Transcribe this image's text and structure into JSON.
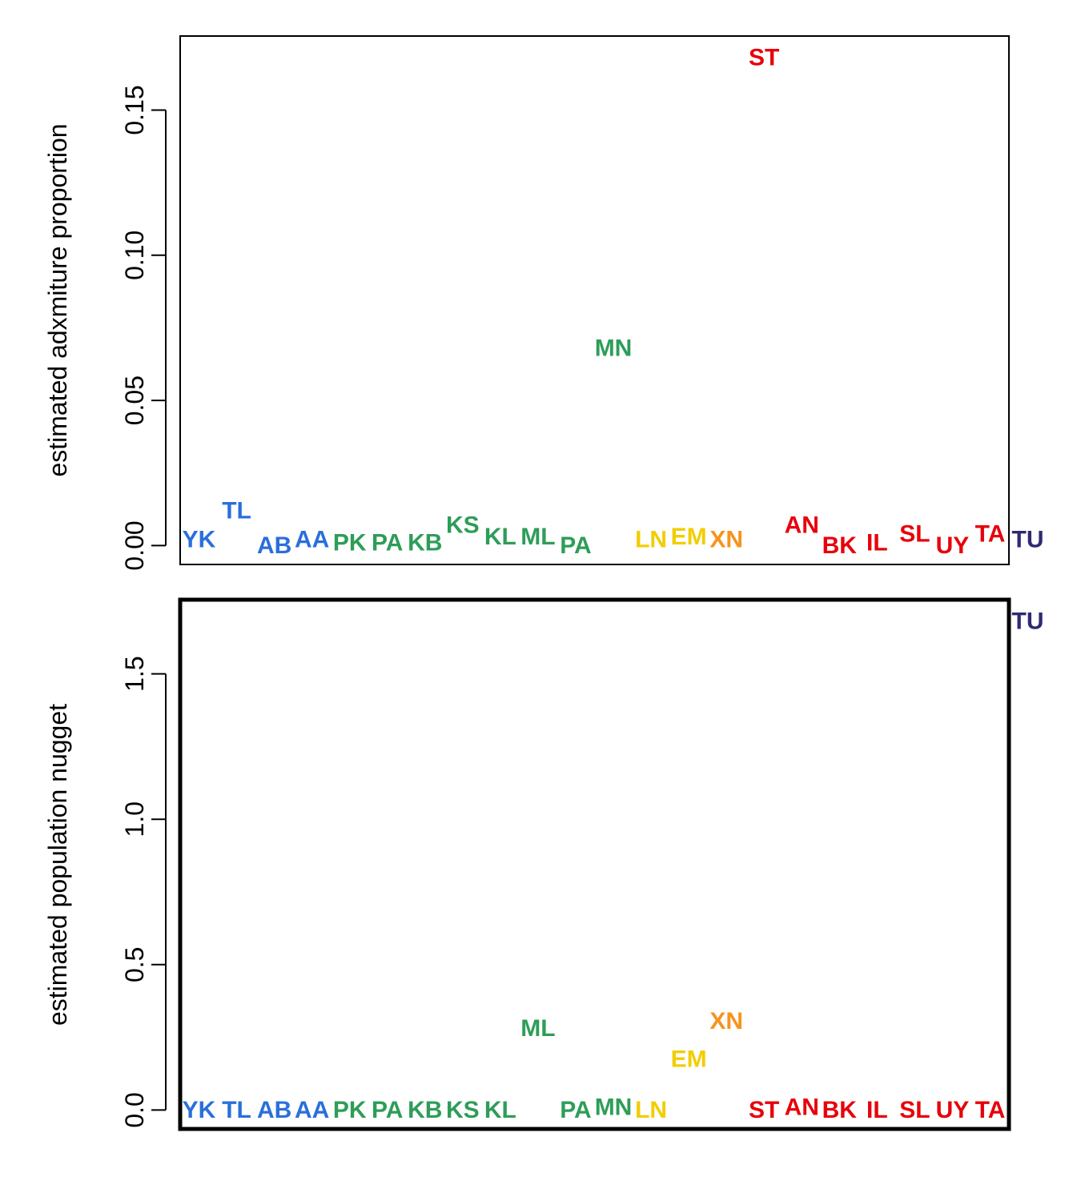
{
  "colors": {
    "blue": "#2a6fdb",
    "green": "#2e9d58",
    "yellow": "#f2cd00",
    "orange": "#f7931e",
    "red": "#e8000b",
    "navy": "#2e2a73"
  },
  "chart_data": [
    {
      "type": "scatter",
      "marker": "text-labels",
      "title": "",
      "xlabel": "",
      "ylabel": "estimated adxmiture proportion",
      "ylim": [
        -0.0065,
        0.1755
      ],
      "yticks": [
        0,
        0.05,
        0.1,
        0.15
      ],
      "ytick_labels": [
        "0.00",
        "0.05",
        "0.10",
        "0.15"
      ],
      "xlim": [
        0.5,
        22.5
      ],
      "grid": false,
      "points": [
        {
          "x": 1,
          "y": 0.002,
          "label": "YK",
          "color": "blue"
        },
        {
          "x": 2,
          "y": 0.012,
          "label": "TL",
          "color": "blue"
        },
        {
          "x": 3,
          "y": 0.0,
          "label": "AB",
          "color": "blue"
        },
        {
          "x": 4,
          "y": 0.002,
          "label": "AA",
          "color": "blue"
        },
        {
          "x": 5,
          "y": 0.001,
          "label": "PK",
          "color": "green"
        },
        {
          "x": 6,
          "y": 0.001,
          "label": "PA",
          "color": "green"
        },
        {
          "x": 7,
          "y": 0.001,
          "label": "KB",
          "color": "green"
        },
        {
          "x": 8,
          "y": 0.007,
          "label": "KS",
          "color": "green"
        },
        {
          "x": 9,
          "y": 0.003,
          "label": "KL",
          "color": "green"
        },
        {
          "x": 10,
          "y": 0.003,
          "label": "ML",
          "color": "green"
        },
        {
          "x": 11,
          "y": 0.0,
          "label": "PA",
          "color": "green"
        },
        {
          "x": 12,
          "y": 0.068,
          "label": "MN",
          "color": "green"
        },
        {
          "x": 13,
          "y": 0.002,
          "label": "LN",
          "color": "yellow"
        },
        {
          "x": 14,
          "y": 0.003,
          "label": "EM",
          "color": "yellow"
        },
        {
          "x": 15,
          "y": 0.002,
          "label": "XN",
          "color": "orange"
        },
        {
          "x": 16,
          "y": 0.168,
          "label": "ST",
          "color": "red"
        },
        {
          "x": 17,
          "y": 0.007,
          "label": "AN",
          "color": "red"
        },
        {
          "x": 18,
          "y": 0.0,
          "label": "BK",
          "color": "red"
        },
        {
          "x": 19,
          "y": 0.001,
          "label": "IL",
          "color": "red"
        },
        {
          "x": 20,
          "y": 0.004,
          "label": "SL",
          "color": "red"
        },
        {
          "x": 21,
          "y": 0.0,
          "label": "UY",
          "color": "red"
        },
        {
          "x": 22,
          "y": 0.004,
          "label": "TA",
          "color": "red"
        },
        {
          "x": 23,
          "y": 0.002,
          "label": "TU",
          "color": "navy"
        }
      ]
    },
    {
      "type": "scatter",
      "marker": "text-labels",
      "title": "",
      "xlabel": "",
      "ylabel": "estimated population nugget",
      "ylim": [
        -0.065,
        1.755
      ],
      "yticks": [
        0,
        0.5,
        1.0,
        1.5
      ],
      "ytick_labels": [
        "0.0",
        "0.5",
        "1.0",
        "1.5"
      ],
      "xlim": [
        0.5,
        22.5
      ],
      "grid": false,
      "points": [
        {
          "x": 1,
          "y": 0.0,
          "label": "YK",
          "color": "blue"
        },
        {
          "x": 2,
          "y": 0.0,
          "label": "TL",
          "color": "blue"
        },
        {
          "x": 3,
          "y": 0.0,
          "label": "AB",
          "color": "blue"
        },
        {
          "x": 4,
          "y": 0.0,
          "label": "AA",
          "color": "blue"
        },
        {
          "x": 5,
          "y": 0.0,
          "label": "PK",
          "color": "green"
        },
        {
          "x": 6,
          "y": 0.0,
          "label": "PA",
          "color": "green"
        },
        {
          "x": 7,
          "y": 0.0,
          "label": "KB",
          "color": "green"
        },
        {
          "x": 8,
          "y": 0.0,
          "label": "KS",
          "color": "green"
        },
        {
          "x": 9,
          "y": 0.0,
          "label": "KL",
          "color": "green"
        },
        {
          "x": 10,
          "y": 0.28,
          "label": "ML",
          "color": "green"
        },
        {
          "x": 11,
          "y": 0.0,
          "label": "PA",
          "color": "green"
        },
        {
          "x": 12,
          "y": 0.01,
          "label": "MN",
          "color": "green"
        },
        {
          "x": 13,
          "y": 0.0,
          "label": "LN",
          "color": "yellow"
        },
        {
          "x": 14,
          "y": 0.175,
          "label": "EM",
          "color": "yellow"
        },
        {
          "x": 15,
          "y": 0.305,
          "label": "XN",
          "color": "orange"
        },
        {
          "x": 16,
          "y": 0.0,
          "label": "ST",
          "color": "red"
        },
        {
          "x": 17,
          "y": 0.01,
          "label": "AN",
          "color": "red"
        },
        {
          "x": 18,
          "y": 0.0,
          "label": "BK",
          "color": "red"
        },
        {
          "x": 19,
          "y": 0.0,
          "label": "IL",
          "color": "red"
        },
        {
          "x": 20,
          "y": 0.0,
          "label": "SL",
          "color": "red"
        },
        {
          "x": 21,
          "y": 0.0,
          "label": "UY",
          "color": "red"
        },
        {
          "x": 22,
          "y": 0.0,
          "label": "TA",
          "color": "red"
        },
        {
          "x": 23,
          "y": 1.68,
          "label": "TU",
          "color": "navy"
        }
      ]
    }
  ]
}
